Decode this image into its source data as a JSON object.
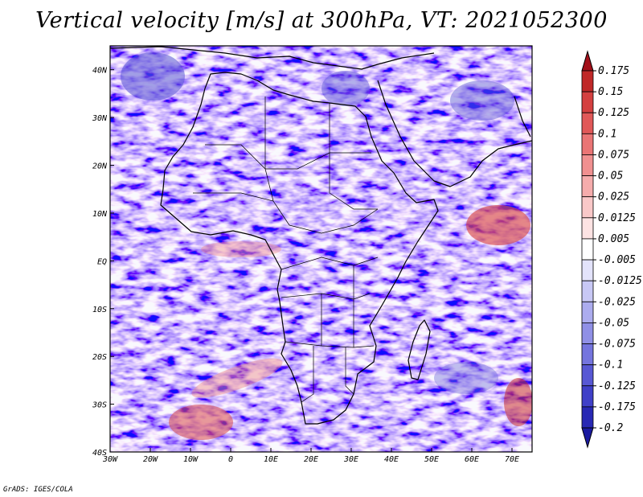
{
  "title": "Vertical velocity [m/s] at 300hPa, VT: 2021052300",
  "credit": "GrADS: IGES/COLA",
  "map": {
    "field": "Vertical velocity",
    "units": "m/s",
    "level": "300hPa",
    "valid_time": "2021052300",
    "lon_range": [
      -30,
      75
    ],
    "lat_range": [
      -40,
      45
    ],
    "x_ticks": [
      {
        "value": -30,
        "label": "30W"
      },
      {
        "value": -20,
        "label": "20W"
      },
      {
        "value": -10,
        "label": "10W"
      },
      {
        "value": 0,
        "label": "0"
      },
      {
        "value": 10,
        "label": "10E"
      },
      {
        "value": 20,
        "label": "20E"
      },
      {
        "value": 30,
        "label": "30E"
      },
      {
        "value": 40,
        "label": "40E"
      },
      {
        "value": 50,
        "label": "50E"
      },
      {
        "value": 60,
        "label": "60E"
      },
      {
        "value": 70,
        "label": "70E"
      }
    ],
    "y_ticks": [
      {
        "value": 40,
        "label": "40N"
      },
      {
        "value": 30,
        "label": "30N"
      },
      {
        "value": 20,
        "label": "20N"
      },
      {
        "value": 10,
        "label": "10N"
      },
      {
        "value": 0,
        "label": "EQ"
      },
      {
        "value": -10,
        "label": "10S"
      },
      {
        "value": -20,
        "label": "20S"
      },
      {
        "value": -30,
        "label": "30S"
      },
      {
        "value": -40,
        "label": "40S"
      }
    ]
  },
  "colorbar": {
    "labels": [
      "0.175",
      "0.15",
      "0.125",
      "0.1",
      "0.075",
      "0.05",
      "0.025",
      "0.0125",
      "0.005",
      "-0.005",
      "-0.0125",
      "-0.025",
      "-0.05",
      "-0.075",
      "-0.1",
      "-0.125",
      "-0.175",
      "-0.2"
    ],
    "colors": [
      "#a3101a",
      "#c02828",
      "#d44040",
      "#e15858",
      "#ea7575",
      "#f09090",
      "#f5acac",
      "#f9c8c8",
      "#fde3e3",
      "#ffffff",
      "#e3e3fb",
      "#c8c8f5",
      "#acacee",
      "#9090e6",
      "#7575de",
      "#5858d4",
      "#4040c8",
      "#2828b4",
      "#1a1aa0"
    ]
  }
}
